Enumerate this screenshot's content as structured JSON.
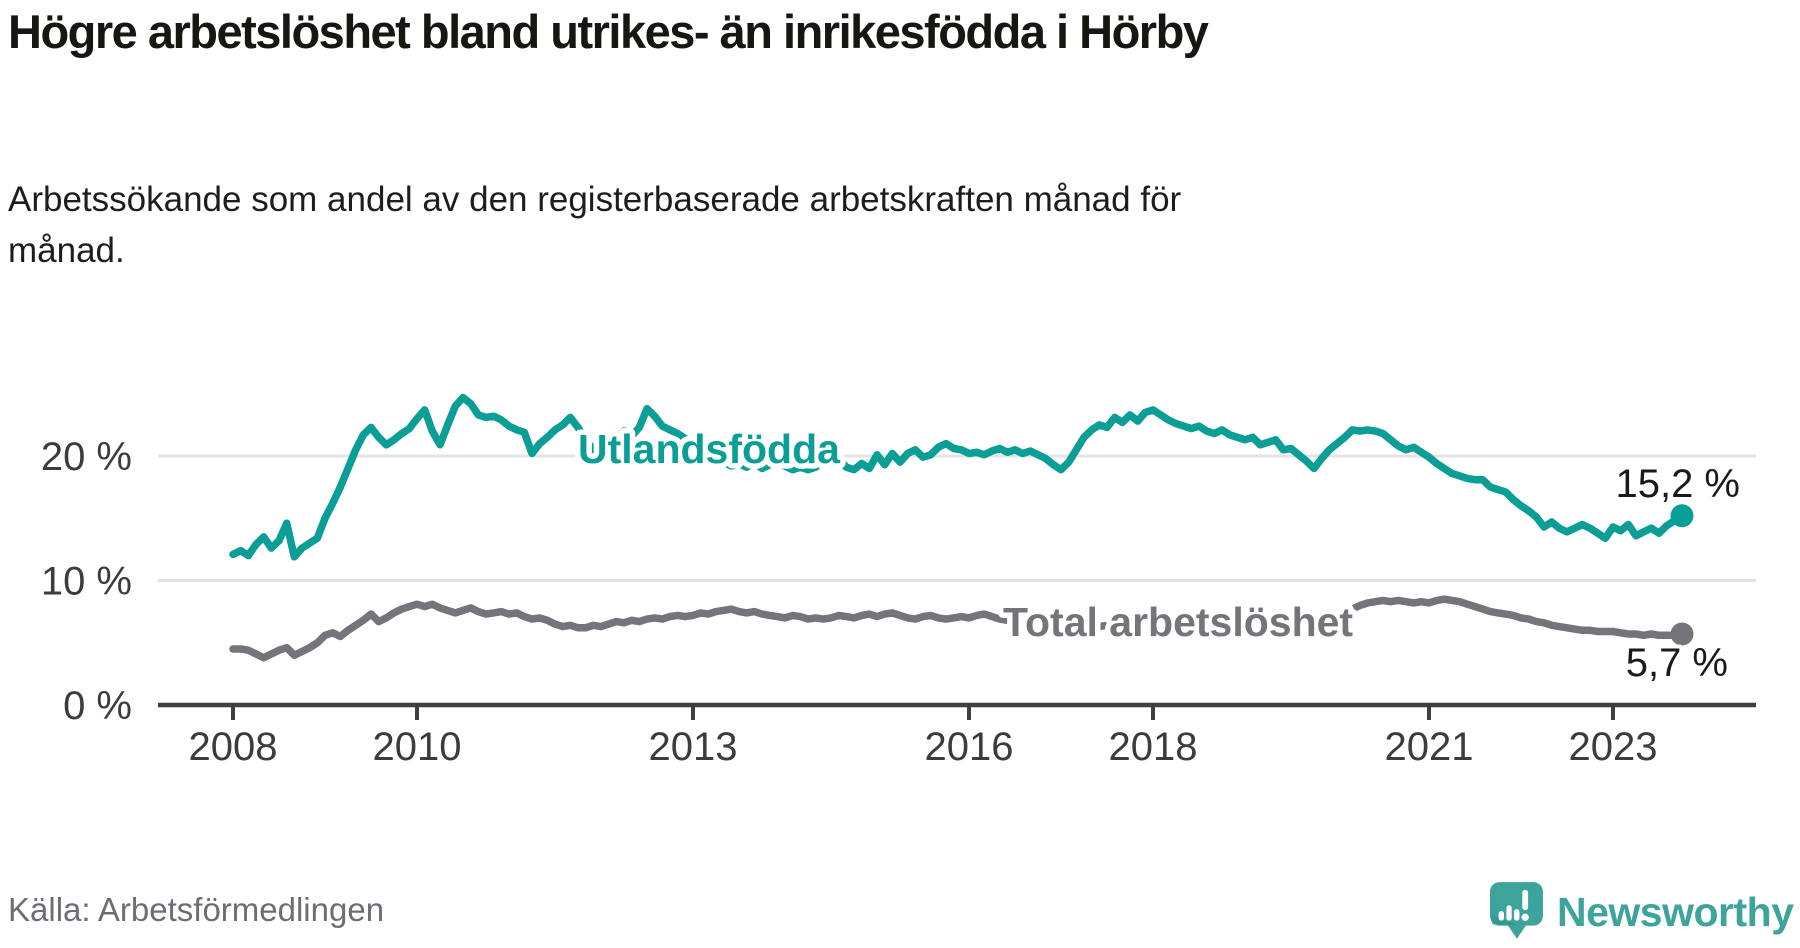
{
  "chart_data": {
    "type": "line",
    "title": "Högre arbetslöshet bland utrikes- än inrikesfödda i Hörby",
    "subtitle": "Arbetssökande som andel av den registerbaserade arbetskraften månad för månad.",
    "unit": "%",
    "x_start_year": 2008,
    "points_per_year": 12,
    "x_end": "2023-10",
    "grid": "horizontal",
    "ylim": [
      0,
      26
    ],
    "x_ticks": [
      {
        "year": 2008,
        "label": "2008"
      },
      {
        "year": 2010,
        "label": "2010"
      },
      {
        "year": 2013,
        "label": "2013"
      },
      {
        "year": 2016,
        "label": "2016"
      },
      {
        "year": 2018,
        "label": "2018"
      },
      {
        "year": 2021,
        "label": "2021"
      },
      {
        "year": 2023,
        "label": "2023"
      }
    ],
    "y_ticks": [
      {
        "value": 0,
        "label": "0 %"
      },
      {
        "value": 10,
        "label": "10 %"
      },
      {
        "value": 20,
        "label": "20 %"
      }
    ],
    "series": [
      {
        "name": "Utlandsfödda",
        "color": "#0a9e96",
        "end_value": 15.2,
        "end_label": "15,2 %",
        "values": [
          12.1,
          12.4,
          12.0,
          12.9,
          13.5,
          12.6,
          13.2,
          14.6,
          11.9,
          12.6,
          13.0,
          13.4,
          15.0,
          16.2,
          17.5,
          19.0,
          20.5,
          21.7,
          22.3,
          21.5,
          20.9,
          21.3,
          21.8,
          22.2,
          23.0,
          23.7,
          22.0,
          20.9,
          22.5,
          24.0,
          24.7,
          24.2,
          23.3,
          23.1,
          23.2,
          22.9,
          22.4,
          22.1,
          21.9,
          20.2,
          21.0,
          21.5,
          22.1,
          22.5,
          23.1,
          22.3,
          21.3,
          20.5,
          20.1,
          20.7,
          21.4,
          22.0,
          21.6,
          22.3,
          23.8,
          23.2,
          22.4,
          22.1,
          21.8,
          21.4,
          21.0,
          20.6,
          20.2,
          19.8,
          19.5,
          19.2,
          19.4,
          19.1,
          19.5,
          19.0,
          19.3,
          19.6,
          19.2,
          18.9,
          19.1,
          18.9,
          19.1,
          19.8,
          19.4,
          19.8,
          19.1,
          18.9,
          19.4,
          19.0,
          20.1,
          19.3,
          20.2,
          19.5,
          20.2,
          20.5,
          19.9,
          20.1,
          20.7,
          21.0,
          20.6,
          20.5,
          20.2,
          20.3,
          20.1,
          20.4,
          20.6,
          20.3,
          20.5,
          20.2,
          20.4,
          20.1,
          19.8,
          19.3,
          18.9,
          19.5,
          20.5,
          21.5,
          22.1,
          22.5,
          22.3,
          23.1,
          22.7,
          23.3,
          22.8,
          23.5,
          23.7,
          23.3,
          22.9,
          22.6,
          22.4,
          22.2,
          22.4,
          22.0,
          21.8,
          22.1,
          21.7,
          21.5,
          21.3,
          21.5,
          20.9,
          21.1,
          21.3,
          20.5,
          20.6,
          20.1,
          19.6,
          19.0,
          19.8,
          20.5,
          21.0,
          21.5,
          22.1,
          22.0,
          22.1,
          22.0,
          21.8,
          21.3,
          20.8,
          20.5,
          20.7,
          20.3,
          19.9,
          19.4,
          19.0,
          18.6,
          18.4,
          18.2,
          18.1,
          18.1,
          17.5,
          17.3,
          17.1,
          16.5,
          16.0,
          15.6,
          15.1,
          14.3,
          14.7,
          14.2,
          13.9,
          14.2,
          14.5,
          14.2,
          13.8,
          13.4,
          14.3,
          14.0,
          14.5,
          13.6,
          13.9,
          14.2,
          13.8,
          14.4,
          14.8,
          15.2
        ]
      },
      {
        "name": "Total arbetslöshet",
        "color": "#76747b",
        "end_value": 5.7,
        "end_label": "5,7 %",
        "values": [
          4.5,
          4.5,
          4.4,
          4.1,
          3.8,
          4.1,
          4.4,
          4.6,
          4.0,
          4.3,
          4.6,
          5.0,
          5.6,
          5.8,
          5.5,
          6.0,
          6.4,
          6.8,
          7.3,
          6.7,
          7.0,
          7.4,
          7.7,
          7.9,
          8.1,
          7.9,
          8.1,
          7.8,
          7.6,
          7.4,
          7.6,
          7.8,
          7.5,
          7.3,
          7.4,
          7.5,
          7.3,
          7.4,
          7.1,
          6.9,
          7.0,
          6.8,
          6.5,
          6.3,
          6.4,
          6.2,
          6.2,
          6.4,
          6.3,
          6.5,
          6.7,
          6.6,
          6.8,
          6.7,
          6.9,
          7.0,
          6.9,
          7.1,
          7.2,
          7.1,
          7.2,
          7.4,
          7.3,
          7.5,
          7.6,
          7.7,
          7.5,
          7.4,
          7.5,
          7.3,
          7.2,
          7.1,
          7.0,
          7.2,
          7.1,
          6.9,
          7.0,
          6.9,
          7.0,
          7.2,
          7.1,
          7.0,
          7.2,
          7.3,
          7.1,
          7.3,
          7.4,
          7.2,
          7.0,
          6.9,
          7.1,
          7.2,
          7.0,
          6.9,
          7.0,
          7.1,
          7.0,
          7.2,
          7.3,
          7.1,
          6.9,
          6.8,
          7.0,
          6.8,
          6.9,
          6.7,
          6.8,
          6.9,
          6.8,
          6.6,
          6.7,
          6.5,
          6.4,
          6.3,
          6.4,
          6.2,
          6.3,
          6.5,
          6.4,
          6.5,
          6.4,
          6.2,
          6.1,
          6.0,
          6.1,
          5.9,
          6.0,
          6.1,
          6.2,
          6.3,
          6.4,
          6.4,
          6.5,
          6.4,
          6.6,
          6.5,
          6.6,
          6.7,
          6.6,
          6.8,
          6.7,
          6.8,
          6.9,
          7.0,
          7.1,
          7.3,
          7.7,
          8.0,
          8.2,
          8.3,
          8.4,
          8.3,
          8.4,
          8.3,
          8.2,
          8.3,
          8.2,
          8.4,
          8.5,
          8.4,
          8.3,
          8.1,
          7.9,
          7.7,
          7.5,
          7.4,
          7.3,
          7.2,
          7.0,
          6.9,
          6.7,
          6.6,
          6.4,
          6.3,
          6.2,
          6.1,
          6.0,
          6.0,
          5.9,
          5.9,
          5.9,
          5.8,
          5.7,
          5.7,
          5.6,
          5.7,
          5.6,
          5.6,
          5.6,
          5.7
        ]
      }
    ]
  },
  "footer": {
    "source": "Källa: Arbetsförmedlingen",
    "brand": "Newsworthy"
  }
}
